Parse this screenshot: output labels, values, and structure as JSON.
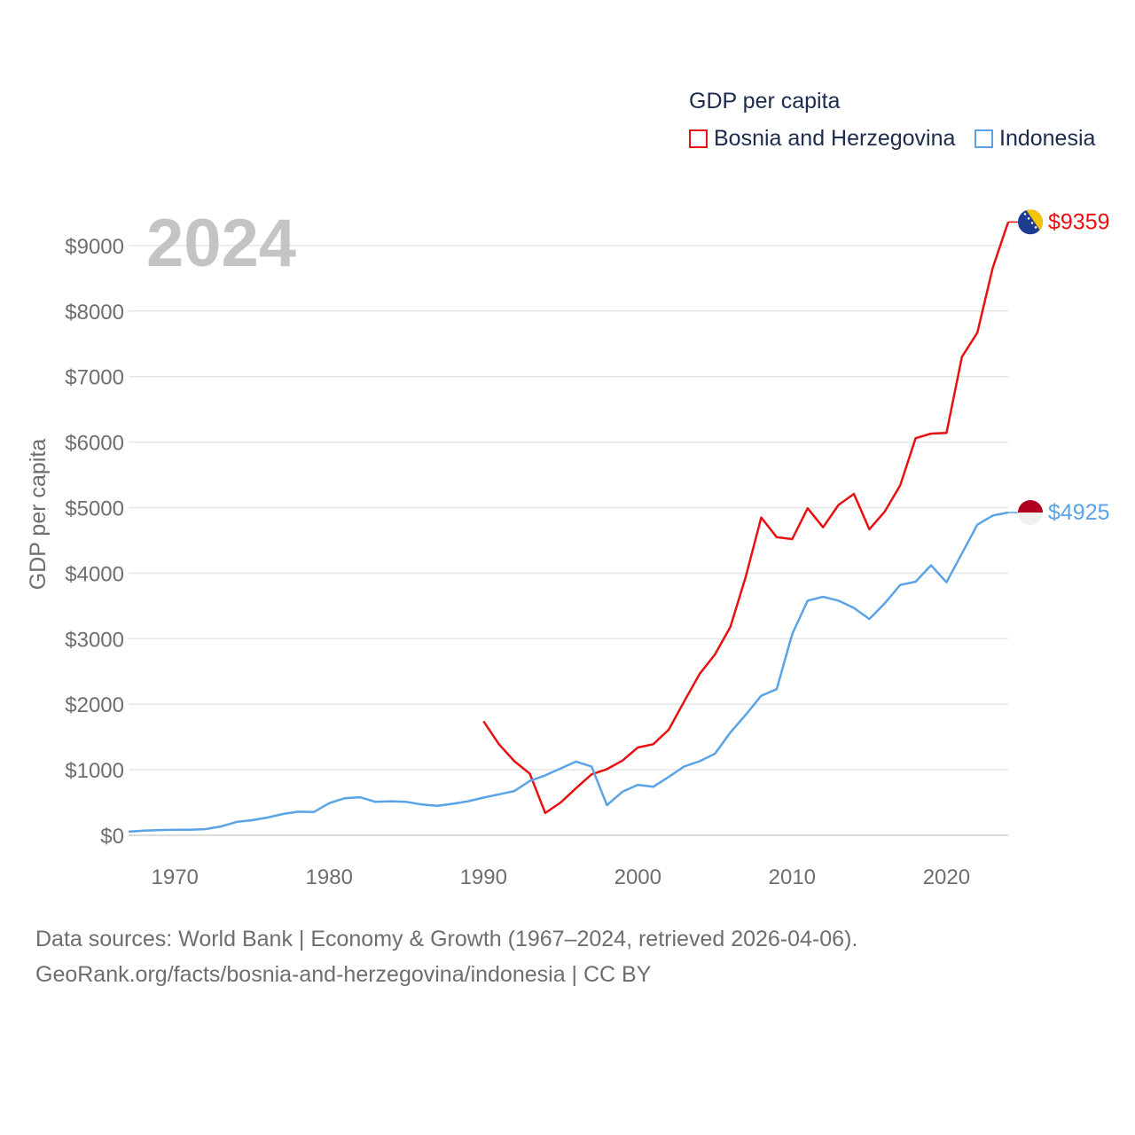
{
  "chart_data": {
    "type": "line",
    "title": "GDP per capita",
    "ylabel": "GDP per capita",
    "xlabel": "",
    "year_label": "2024",
    "xlim": [
      1967,
      2024
    ],
    "ylim": [
      0,
      9500
    ],
    "x_ticks": [
      1970,
      1980,
      1990,
      2000,
      2010,
      2020
    ],
    "y_ticks": [
      {
        "value": 0,
        "label": "$0"
      },
      {
        "value": 1000,
        "label": "$1000"
      },
      {
        "value": 2000,
        "label": "$2000"
      },
      {
        "value": 3000,
        "label": "$3000"
      },
      {
        "value": 4000,
        "label": "$4000"
      },
      {
        "value": 5000,
        "label": "$5000"
      },
      {
        "value": 6000,
        "label": "$6000"
      },
      {
        "value": 7000,
        "label": "$7000"
      },
      {
        "value": 8000,
        "label": "$8000"
      },
      {
        "value": 9000,
        "label": "$9000"
      }
    ],
    "series": [
      {
        "name": "Bosnia and Herzegovina",
        "color": "#e81010",
        "end_label": "$9359",
        "flag": "bosnia-flag",
        "x": [
          1990,
          1991,
          1992,
          1993,
          1994,
          1995,
          1996,
          1997,
          1998,
          1999,
          2000,
          2001,
          2002,
          2003,
          2004,
          2005,
          2006,
          2007,
          2008,
          2009,
          2010,
          2011,
          2012,
          2013,
          2014,
          2015,
          2016,
          2017,
          2018,
          2019,
          2020,
          2021,
          2022,
          2023,
          2024
        ],
        "values": [
          1740,
          1390,
          1130,
          940,
          340,
          500,
          720,
          930,
          1010,
          1140,
          1340,
          1390,
          1610,
          2040,
          2460,
          2760,
          3180,
          3950,
          4850,
          4550,
          4520,
          4990,
          4700,
          5040,
          5210,
          4670,
          4940,
          5340,
          6060,
          6130,
          6140,
          7300,
          7670,
          8660,
          9359
        ]
      },
      {
        "name": "Indonesia",
        "color": "#5aa3e6",
        "end_label": "$4925",
        "flag": "indonesia-flag",
        "x": [
          1967,
          1968,
          1969,
          1970,
          1971,
          1972,
          1973,
          1974,
          1975,
          1976,
          1977,
          1978,
          1979,
          1980,
          1981,
          1982,
          1983,
          1984,
          1985,
          1986,
          1987,
          1988,
          1989,
          1990,
          1991,
          1992,
          1993,
          1994,
          1995,
          1996,
          1997,
          1998,
          1999,
          2000,
          2001,
          2002,
          2003,
          2004,
          2005,
          2006,
          2007,
          2008,
          2009,
          2010,
          2011,
          2012,
          2013,
          2014,
          2015,
          2016,
          2017,
          2018,
          2019,
          2020,
          2021,
          2022,
          2023,
          2024
        ],
        "values": [
          55,
          70,
          80,
          85,
          85,
          95,
          135,
          205,
          230,
          270,
          325,
          360,
          355,
          490,
          565,
          580,
          510,
          520,
          510,
          470,
          450,
          480,
          520,
          575,
          625,
          675,
          830,
          915,
          1020,
          1125,
          1050,
          460,
          665,
          770,
          740,
          890,
          1050,
          1130,
          1245,
          1570,
          1840,
          2130,
          2230,
          3070,
          3580,
          3640,
          3580,
          3470,
          3300,
          3540,
          3820,
          3870,
          4120,
          3860,
          4300,
          4740,
          4880,
          4925
        ]
      }
    ]
  },
  "legend": {
    "title": "GDP per capita",
    "items": [
      {
        "label": "Bosnia and Herzegovina",
        "color": "#e81010"
      },
      {
        "label": "Indonesia",
        "color": "#5aa3e6"
      }
    ]
  },
  "footer": {
    "line1": "Data sources: World Bank | Economy & Growth (1967–2024, retrieved 2026-04-06).",
    "line2": "GeoRank.org/facts/bosnia-and-herzegovina/indonesia | CC BY"
  }
}
